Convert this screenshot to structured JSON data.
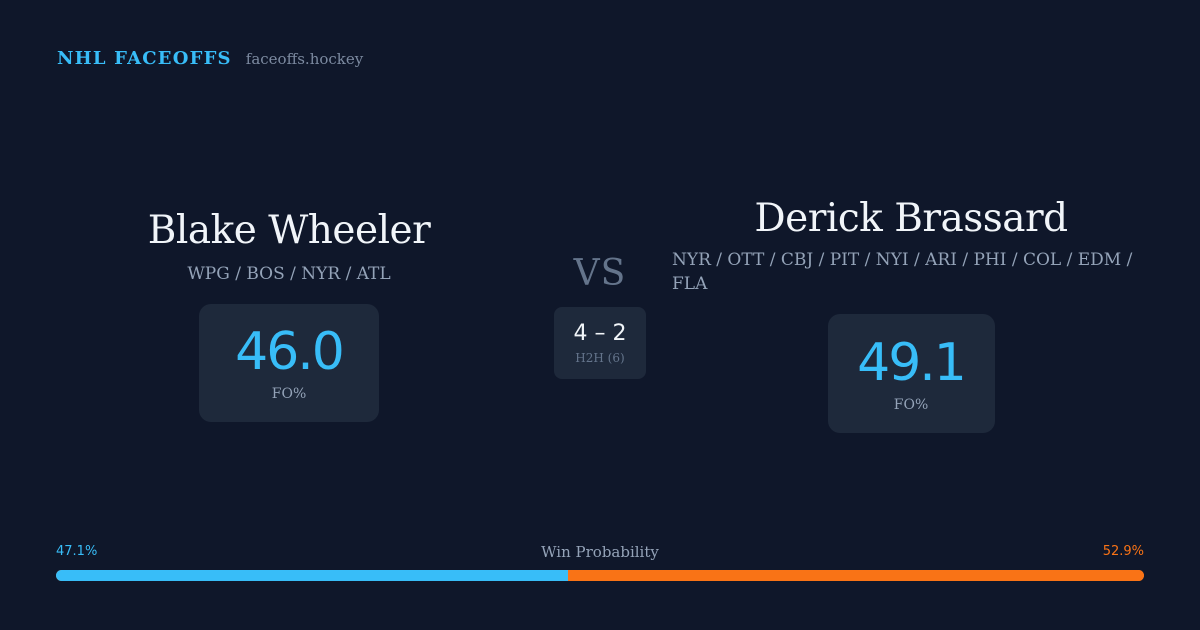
{
  "brand": {
    "name": "NHL FACEOFFS",
    "domain": "faceoffs.hockey"
  },
  "player_left": {
    "name": "Blake Wheeler",
    "teams": "WPG / BOS / NYR / ATL",
    "fo_value": "46.0",
    "fo_label": "FO%"
  },
  "player_right": {
    "name": "Derick Brassard",
    "teams": "NYR / OTT / CBJ / PIT / NYI / ARI / PHI / COL / EDM / FLA",
    "fo_value": "49.1",
    "fo_label": "FO%"
  },
  "versus": {
    "label": "VS",
    "h2h_score": "4 – 2",
    "h2h_label": "H2H (6)"
  },
  "win_probability": {
    "title": "Win Probability",
    "left_label": "47.1%",
    "right_label": "52.9%",
    "left_fraction": 0.471,
    "right_fraction": 0.529,
    "left_color": "#38bdf8",
    "right_color": "#f97316"
  },
  "colors": {
    "background": "#0f172a",
    "card": "#1e293b",
    "accent": "#38bdf8"
  }
}
